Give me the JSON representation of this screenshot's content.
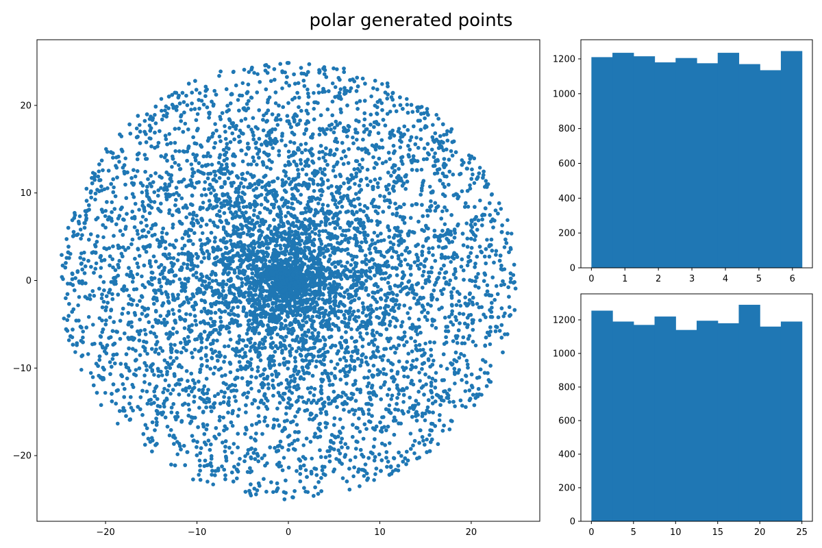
{
  "figure": {
    "title": "polar generated points"
  },
  "chart_data": [
    {
      "type": "scatter",
      "xlim": [
        -27.5,
        27.5
      ],
      "ylim": [
        -27.5,
        27.5
      ],
      "xticks": [
        -20,
        -10,
        0,
        10,
        20
      ],
      "yticks": [
        -20,
        -10,
        0,
        10,
        20
      ],
      "xtick_labels": [
        "−20",
        "−10",
        "0",
        "10",
        "20"
      ],
      "ytick_labels": [
        "−20",
        "−10",
        "0",
        "10",
        "20"
      ],
      "xlabel": "",
      "ylabel": "",
      "color": "#1f77b4",
      "n_points": 12000,
      "distribution": "angle uniform on [0, 2π), radius uniform on [0, 25]",
      "grid": false
    },
    {
      "type": "bar",
      "description": "histogram of angle",
      "bin_edges": [
        0,
        0.628,
        1.257,
        1.885,
        2.513,
        3.142,
        3.77,
        4.398,
        5.027,
        5.655,
        6.283
      ],
      "values": [
        1210,
        1235,
        1215,
        1180,
        1205,
        1175,
        1235,
        1170,
        1135,
        1245
      ],
      "xlim": [
        -0.314,
        6.597
      ],
      "ylim": [
        0,
        1310
      ],
      "xticks": [
        0,
        1,
        2,
        3,
        4,
        5,
        6
      ],
      "yticks": [
        0,
        200,
        400,
        600,
        800,
        1000,
        1200
      ],
      "xtick_labels": [
        "0",
        "1",
        "2",
        "3",
        "4",
        "5",
        "6"
      ],
      "ytick_labels": [
        "0",
        "200",
        "400",
        "600",
        "800",
        "1000",
        "1200"
      ],
      "color": "#1f77b4",
      "grid": false
    },
    {
      "type": "bar",
      "description": "histogram of radius",
      "bin_edges": [
        0,
        2.5,
        5,
        7.5,
        10,
        12.5,
        15,
        17.5,
        20,
        22.5,
        25
      ],
      "values": [
        1255,
        1190,
        1170,
        1220,
        1140,
        1195,
        1180,
        1290,
        1160,
        1190
      ],
      "xlim": [
        -1.25,
        26.25
      ],
      "ylim": [
        0,
        1355
      ],
      "xticks": [
        0,
        5,
        10,
        15,
        20,
        25
      ],
      "yticks": [
        0,
        200,
        400,
        600,
        800,
        1000,
        1200
      ],
      "xtick_labels": [
        "0",
        "5",
        "10",
        "15",
        "20",
        "25"
      ],
      "ytick_labels": [
        "0",
        "200",
        "400",
        "600",
        "800",
        "1000",
        "1200"
      ],
      "color": "#1f77b4",
      "grid": false
    }
  ]
}
